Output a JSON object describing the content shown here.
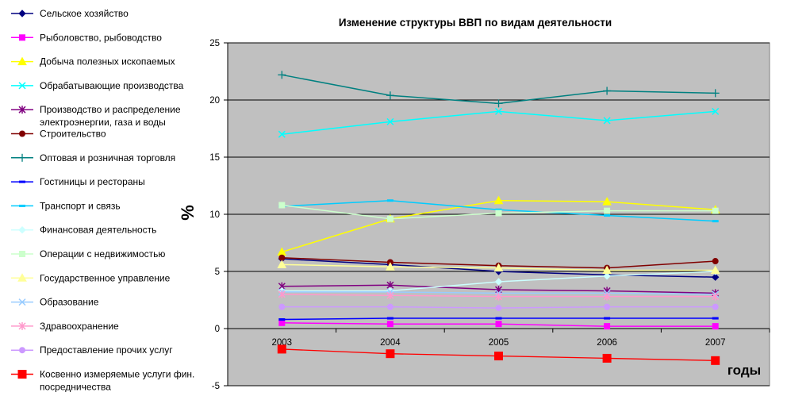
{
  "chart_data": {
    "type": "line",
    "title": "Изменение структуры ВВП по видам деятельности",
    "xlabel": "годы",
    "ylabel": "%",
    "categories": [
      "2003",
      "2004",
      "2005",
      "2006",
      "2007"
    ],
    "ylim": [
      -5,
      25
    ],
    "yticks": [
      -5,
      0,
      5,
      10,
      15,
      20,
      25
    ],
    "grid": true,
    "legend_position": "left",
    "plot_background": "#c0c0c0",
    "series": [
      {
        "name": "Сельское хозяйство",
        "color": "#000080",
        "marker": "diamond",
        "values": [
          6.1,
          5.6,
          5.0,
          4.7,
          4.5
        ]
      },
      {
        "name": "Рыболовство, рыбоводство",
        "color": "#ff00ff",
        "marker": "square",
        "values": [
          0.5,
          0.4,
          0.4,
          0.2,
          0.2
        ]
      },
      {
        "name": "Добыча полезных ископаемых",
        "color": "#ffff00",
        "marker": "triangle",
        "values": [
          6.7,
          9.6,
          11.2,
          11.1,
          10.4
        ]
      },
      {
        "name": "Обрабатывающие производства",
        "color": "#00ffff",
        "marker": "x",
        "values": [
          17.0,
          18.1,
          19.0,
          18.2,
          19.0
        ]
      },
      {
        "name": "Производство и распределение электроэнергии, газа и воды",
        "color": "#800080",
        "marker": "star",
        "values": [
          3.7,
          3.8,
          3.4,
          3.3,
          3.1
        ]
      },
      {
        "name": "Строительство",
        "color": "#800000",
        "marker": "circle",
        "values": [
          6.2,
          5.8,
          5.5,
          5.3,
          5.9
        ]
      },
      {
        "name": "Оптовая и розничная торговля",
        "color": "#008080",
        "marker": "plus",
        "values": [
          22.2,
          20.4,
          19.7,
          20.8,
          20.6
        ]
      },
      {
        "name": "Гостиницы и рестораны",
        "color": "#0000ff",
        "marker": "dash",
        "values": [
          0.8,
          0.9,
          0.9,
          0.9,
          0.9
        ]
      },
      {
        "name": "Транспорт и связь",
        "color": "#00ccff",
        "marker": "dash",
        "values": [
          10.7,
          11.2,
          10.4,
          9.9,
          9.4
        ]
      },
      {
        "name": "Финансовая деятельность",
        "color": "#ccffff",
        "marker": "diamond",
        "values": [
          3.3,
          3.3,
          4.1,
          4.6,
          5.0
        ]
      },
      {
        "name": "Операции с недвижимостью",
        "color": "#ccffcc",
        "marker": "square",
        "values": [
          10.8,
          9.6,
          10.1,
          10.3,
          10.3
        ]
      },
      {
        "name": "Государственное управление",
        "color": "#ffff99",
        "marker": "triangle",
        "values": [
          5.6,
          5.4,
          5.3,
          5.1,
          5.1
        ]
      },
      {
        "name": "Образование",
        "color": "#99ccff",
        "marker": "x",
        "values": [
          3.2,
          3.2,
          3.1,
          3.1,
          3.0
        ]
      },
      {
        "name": "Здравоохранение",
        "color": "#ff99cc",
        "marker": "star",
        "values": [
          3.0,
          2.9,
          2.8,
          2.8,
          2.8
        ]
      },
      {
        "name": "Предоставление прочих услуг",
        "color": "#cc99ff",
        "marker": "circle",
        "values": [
          1.9,
          1.9,
          1.8,
          1.9,
          1.9
        ]
      },
      {
        "name": "Косвенно измеряемые услуги фин. посредничества",
        "color": "#ff0000",
        "marker": "bigsquare",
        "values": [
          -1.8,
          -2.2,
          -2.4,
          -2.6,
          -2.8
        ]
      }
    ]
  }
}
